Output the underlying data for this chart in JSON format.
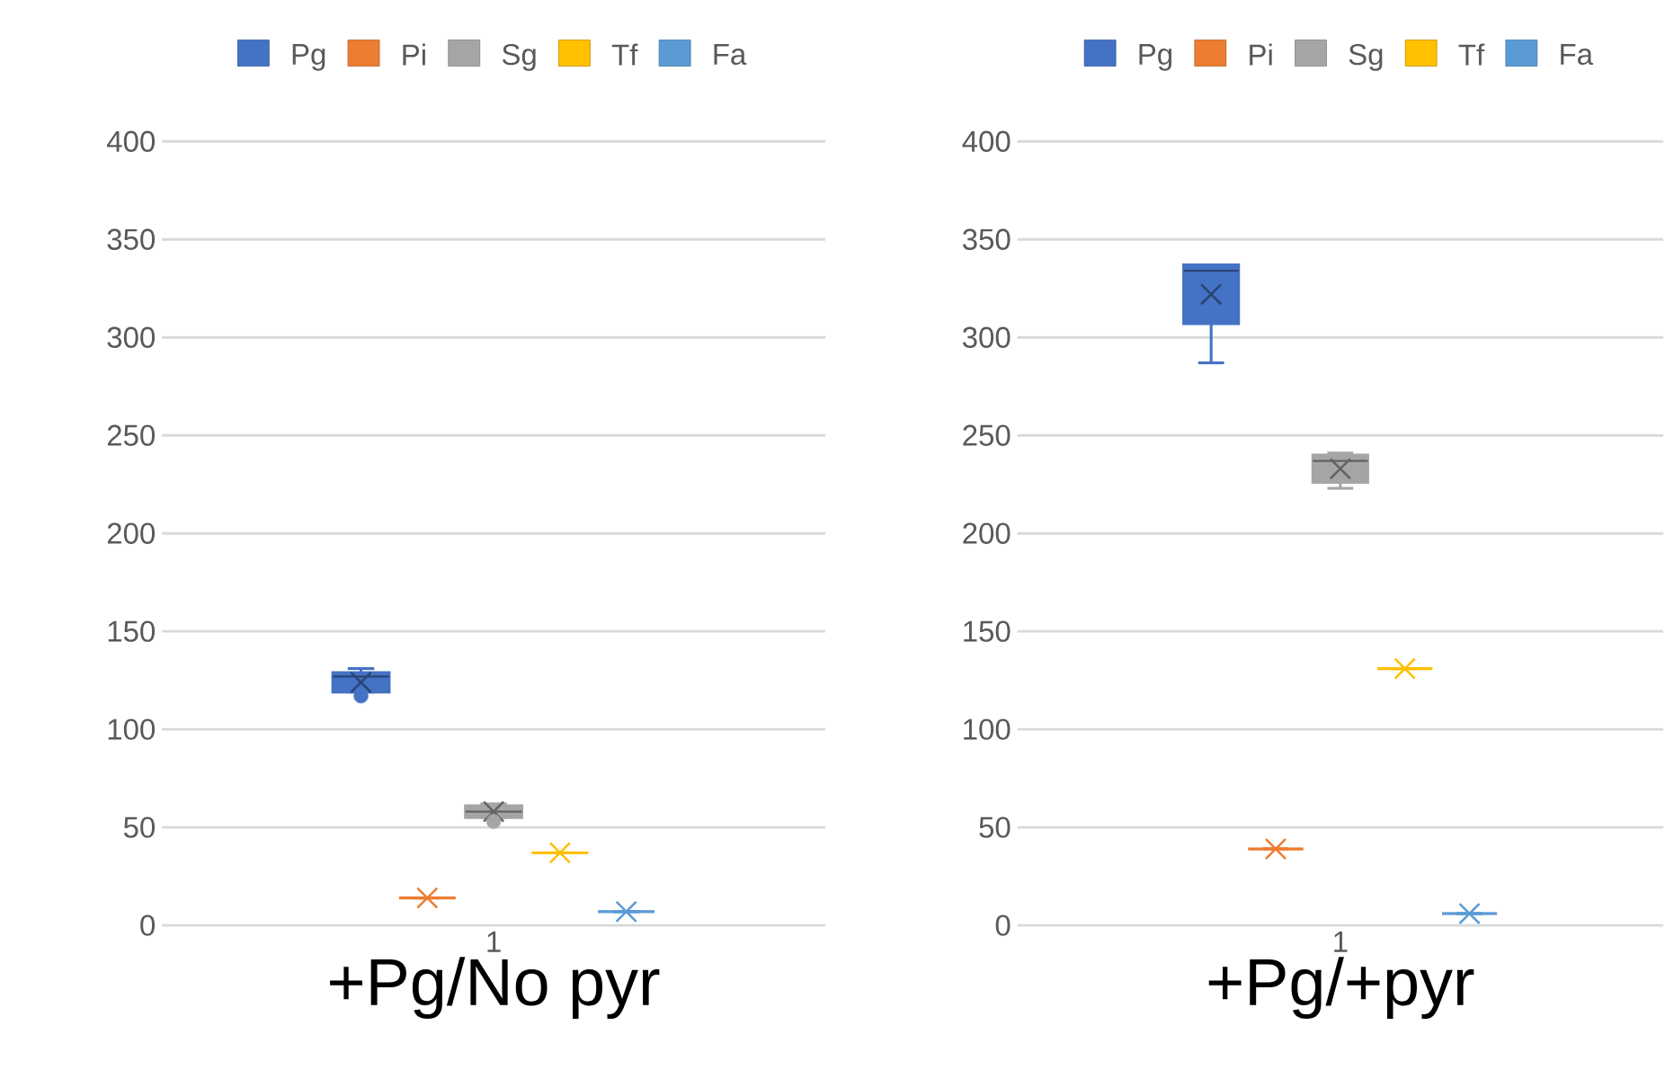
{
  "chart_data": [
    {
      "type": "box",
      "xlabel": "+Pg/No pyr",
      "categories": [
        "1"
      ],
      "ylim": [
        0,
        400
      ],
      "yticks": [
        0,
        50,
        100,
        150,
        200,
        250,
        300,
        350,
        400
      ],
      "grid": "y",
      "legend": "top",
      "series": [
        {
          "name": "Pg",
          "color": "#4472c4",
          "boxes": [
            {
              "low": 119,
              "q1": 119,
              "median": 127,
              "q3": 129,
              "high": 131,
              "mean": 124,
              "outliers": [
                117
              ]
            }
          ]
        },
        {
          "name": "Pi",
          "color": "#ed7d31",
          "boxes": [
            {
              "low": 14,
              "q1": 14,
              "median": 14,
              "q3": 14,
              "high": 14,
              "mean": 14
            }
          ]
        },
        {
          "name": "Sg",
          "color": "#a5a5a5",
          "boxes": [
            {
              "low": 55,
              "q1": 55,
              "median": 58,
              "q3": 61,
              "high": 62,
              "mean": 58,
              "outliers": [
                53
              ]
            }
          ]
        },
        {
          "name": "Tf",
          "color": "#ffc000",
          "boxes": [
            {
              "low": 37,
              "q1": 37,
              "median": 37,
              "q3": 37,
              "high": 37,
              "mean": 37
            }
          ]
        },
        {
          "name": "Fa",
          "color": "#5b9bd5",
          "boxes": [
            {
              "low": 7,
              "q1": 7,
              "median": 7,
              "q3": 7,
              "high": 7,
              "mean": 7
            }
          ]
        }
      ]
    },
    {
      "type": "box",
      "xlabel": "+Pg/+pyr",
      "categories": [
        "1"
      ],
      "ylim": [
        0,
        400
      ],
      "yticks": [
        0,
        50,
        100,
        150,
        200,
        250,
        300,
        350,
        400
      ],
      "grid": "y",
      "legend": "top",
      "series": [
        {
          "name": "Pg",
          "color": "#4472c4",
          "boxes": [
            {
              "low": 287,
              "q1": 307,
              "median": 334,
              "q3": 337,
              "high": 337,
              "mean": 322
            }
          ]
        },
        {
          "name": "Pi",
          "color": "#ed7d31",
          "boxes": [
            {
              "low": 39,
              "q1": 39,
              "median": 39,
              "q3": 39,
              "high": 39,
              "mean": 39
            }
          ]
        },
        {
          "name": "Sg",
          "color": "#a5a5a5",
          "boxes": [
            {
              "low": 223,
              "q1": 226,
              "median": 237,
              "q3": 240,
              "high": 241,
              "mean": 233
            }
          ]
        },
        {
          "name": "Tf",
          "color": "#ffc000",
          "boxes": [
            {
              "low": 131,
              "q1": 131,
              "median": 131,
              "q3": 131,
              "high": 131,
              "mean": 131
            }
          ]
        },
        {
          "name": "Fa",
          "color": "#5b9bd5",
          "boxes": [
            {
              "low": 6,
              "q1": 6,
              "median": 6,
              "q3": 6,
              "high": 6,
              "mean": 6
            }
          ]
        }
      ]
    }
  ]
}
